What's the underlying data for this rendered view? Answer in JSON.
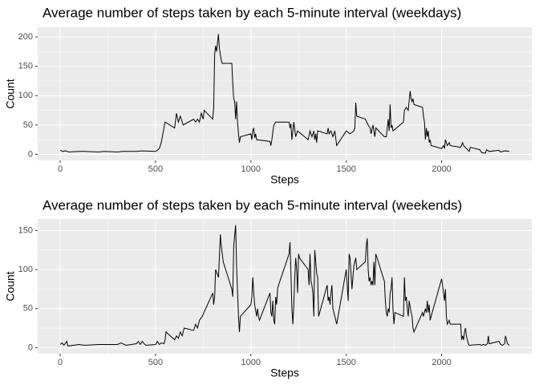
{
  "chart_data": [
    {
      "type": "line",
      "title": "Average number of steps taken by each 5-minute interval (weekdays)",
      "x_label": "Steps",
      "y_label": "Count",
      "color": "#000000",
      "grid": true,
      "x": [
        0,
        15,
        30,
        45,
        100,
        130,
        200,
        230,
        300,
        330,
        400,
        430,
        500,
        510,
        520,
        530,
        550,
        600,
        610,
        620,
        630,
        645,
        700,
        710,
        720,
        730,
        740,
        750,
        755,
        800,
        805,
        810,
        815,
        820,
        830,
        835,
        840,
        845,
        850,
        900,
        905,
        910,
        915,
        920,
        925,
        930,
        935,
        940,
        945,
        1000,
        1005,
        1010,
        1015,
        1020,
        1025,
        1030,
        1100,
        1105,
        1110,
        1120,
        1130,
        1200,
        1205,
        1210,
        1215,
        1225,
        1235,
        1245,
        1300,
        1310,
        1320,
        1330,
        1335,
        1340,
        1345,
        1350,
        1400,
        1405,
        1410,
        1420,
        1430,
        1440,
        1450,
        1500,
        1520,
        1540,
        1545,
        1550,
        1555,
        1600,
        1615,
        1625,
        1630,
        1640,
        1650,
        1655,
        1700,
        1710,
        1720,
        1725,
        1730,
        1735,
        1740,
        1745,
        1800,
        1805,
        1815,
        1825,
        1835,
        1840,
        1845,
        1850,
        1855,
        1900,
        1905,
        1910,
        1915,
        1920,
        1925,
        1930,
        1935,
        1940,
        1945,
        2000,
        2010,
        2015,
        2020,
        2030,
        2040,
        2045,
        2100,
        2110,
        2115,
        2130,
        2145,
        2150,
        2200,
        2210,
        2230,
        2235,
        2250,
        2300,
        2310,
        2330,
        2355
      ],
      "values": [
        7,
        5,
        6,
        4,
        5,
        5,
        4,
        5,
        4,
        5,
        5,
        6,
        5,
        7,
        10,
        20,
        55,
        45,
        70,
        55,
        65,
        50,
        60,
        55,
        60,
        55,
        70,
        60,
        75,
        60,
        80,
        170,
        185,
        175,
        205,
        180,
        170,
        160,
        155,
        155,
        120,
        95,
        90,
        60,
        90,
        55,
        35,
        20,
        30,
        35,
        25,
        40,
        45,
        28,
        35,
        25,
        22,
        15,
        25,
        50,
        55,
        55,
        45,
        52,
        25,
        55,
        30,
        40,
        25,
        40,
        30,
        40,
        25,
        35,
        20,
        40,
        35,
        45,
        35,
        40,
        30,
        40,
        15,
        40,
        35,
        40,
        45,
        88,
        65,
        60,
        50,
        45,
        35,
        50,
        30,
        45,
        30,
        30,
        60,
        40,
        85,
        45,
        50,
        40,
        55,
        75,
        80,
        75,
        108,
        95,
        90,
        95,
        85,
        80,
        65,
        55,
        25,
        45,
        30,
        40,
        20,
        25,
        15,
        10,
        15,
        10,
        25,
        15,
        20,
        15,
        12,
        20,
        15,
        10,
        5,
        12,
        8,
        3,
        2,
        8,
        5,
        7,
        4,
        6,
        5
      ],
      "xlim": [
        -117.75,
        2472.75
      ],
      "ylim": [
        -10.3,
        216.5
      ],
      "xticks": [
        0,
        500,
        1000,
        1500,
        2000
      ],
      "yticks": [
        0,
        50,
        100,
        150,
        200
      ]
    },
    {
      "type": "line",
      "title": "Average number of steps taken by each 5-minute interval (weekends)",
      "x_label": "Steps",
      "y_label": "Count",
      "color": "#000000",
      "grid": true,
      "x": [
        0,
        10,
        20,
        35,
        40,
        100,
        130,
        200,
        300,
        320,
        345,
        400,
        410,
        420,
        430,
        440,
        450,
        500,
        510,
        520,
        530,
        545,
        550,
        555,
        600,
        610,
        620,
        630,
        640,
        650,
        700,
        710,
        720,
        730,
        745,
        800,
        805,
        810,
        815,
        830,
        840,
        845,
        850,
        855,
        900,
        905,
        910,
        920,
        925,
        935,
        940,
        945,
        1000,
        1005,
        1010,
        1015,
        1020,
        1030,
        1035,
        1040,
        1045,
        1100,
        1105,
        1110,
        1115,
        1120,
        1125,
        1130,
        1135,
        1140,
        1145,
        1200,
        1205,
        1210,
        1215,
        1220,
        1225,
        1230,
        1235,
        1240,
        1245,
        1250,
        1255,
        1300,
        1305,
        1310,
        1315,
        1320,
        1325,
        1330,
        1335,
        1340,
        1345,
        1350,
        1355,
        1400,
        1405,
        1410,
        1415,
        1420,
        1425,
        1430,
        1440,
        1450,
        1500,
        1505,
        1510,
        1515,
        1520,
        1530,
        1540,
        1545,
        1550,
        1555,
        1600,
        1605,
        1610,
        1615,
        1620,
        1625,
        1630,
        1635,
        1640,
        1645,
        1650,
        1655,
        1700,
        1705,
        1710,
        1715,
        1720,
        1725,
        1730,
        1735,
        1740,
        1745,
        1750,
        1755,
        1800,
        1805,
        1810,
        1815,
        1820,
        1825,
        1830,
        1840,
        1845,
        1850,
        1855,
        1900,
        1905,
        1915,
        1920,
        1925,
        1930,
        1935,
        1940,
        1945,
        2000,
        2005,
        2010,
        2015,
        2020,
        2025,
        2030,
        2040,
        2045,
        2100,
        2105,
        2110,
        2115,
        2120,
        2125,
        2130,
        2135,
        2140,
        2145,
        2200,
        2210,
        2220,
        2230,
        2240,
        2245,
        2250,
        2300,
        2310,
        2320,
        2330,
        2335,
        2340,
        2345,
        2355
      ],
      "values": [
        4,
        6,
        3,
        8,
        2,
        4,
        3,
        4,
        4,
        6,
        3,
        5,
        8,
        4,
        8,
        5,
        3,
        4,
        8,
        4,
        6,
        5,
        10,
        20,
        10,
        15,
        12,
        20,
        15,
        25,
        22,
        30,
        25,
        35,
        40,
        70,
        55,
        65,
        100,
        90,
        145,
        130,
        120,
        110,
        75,
        65,
        130,
        157,
        105,
        40,
        20,
        40,
        55,
        65,
        90,
        70,
        55,
        40,
        50,
        40,
        35,
        70,
        45,
        40,
        60,
        35,
        30,
        65,
        55,
        75,
        80,
        120,
        135,
        95,
        50,
        30,
        55,
        90,
        115,
        100,
        70,
        120,
        115,
        100,
        80,
        120,
        85,
        80,
        70,
        40,
        125,
        110,
        95,
        90,
        40,
        80,
        60,
        65,
        55,
        70,
        80,
        50,
        40,
        30,
        100,
        80,
        60,
        120,
        115,
        75,
        105,
        110,
        115,
        100,
        110,
        130,
        140,
        100,
        85,
        90,
        80,
        85,
        80,
        110,
        80,
        120,
        85,
        60,
        45,
        40,
        50,
        45,
        70,
        75,
        90,
        50,
        30,
        45,
        40,
        90,
        60,
        65,
        50,
        40,
        60,
        45,
        40,
        25,
        20,
        45,
        40,
        50,
        45,
        60,
        45,
        55,
        35,
        40,
        88,
        80,
        70,
        60,
        75,
        40,
        30,
        35,
        30,
        30,
        10,
        15,
        10,
        20,
        25,
        15,
        10,
        5,
        3,
        4,
        3,
        4,
        3,
        5,
        15,
        5,
        8,
        4,
        3,
        5,
        15,
        10,
        5,
        3
      ],
      "xlim": [
        -117.75,
        2472.75
      ],
      "ylim": [
        -7.85,
        164.85
      ],
      "xticks": [
        0,
        500,
        1000,
        1500,
        2000
      ],
      "yticks": [
        0,
        50,
        100,
        150
      ]
    }
  ]
}
